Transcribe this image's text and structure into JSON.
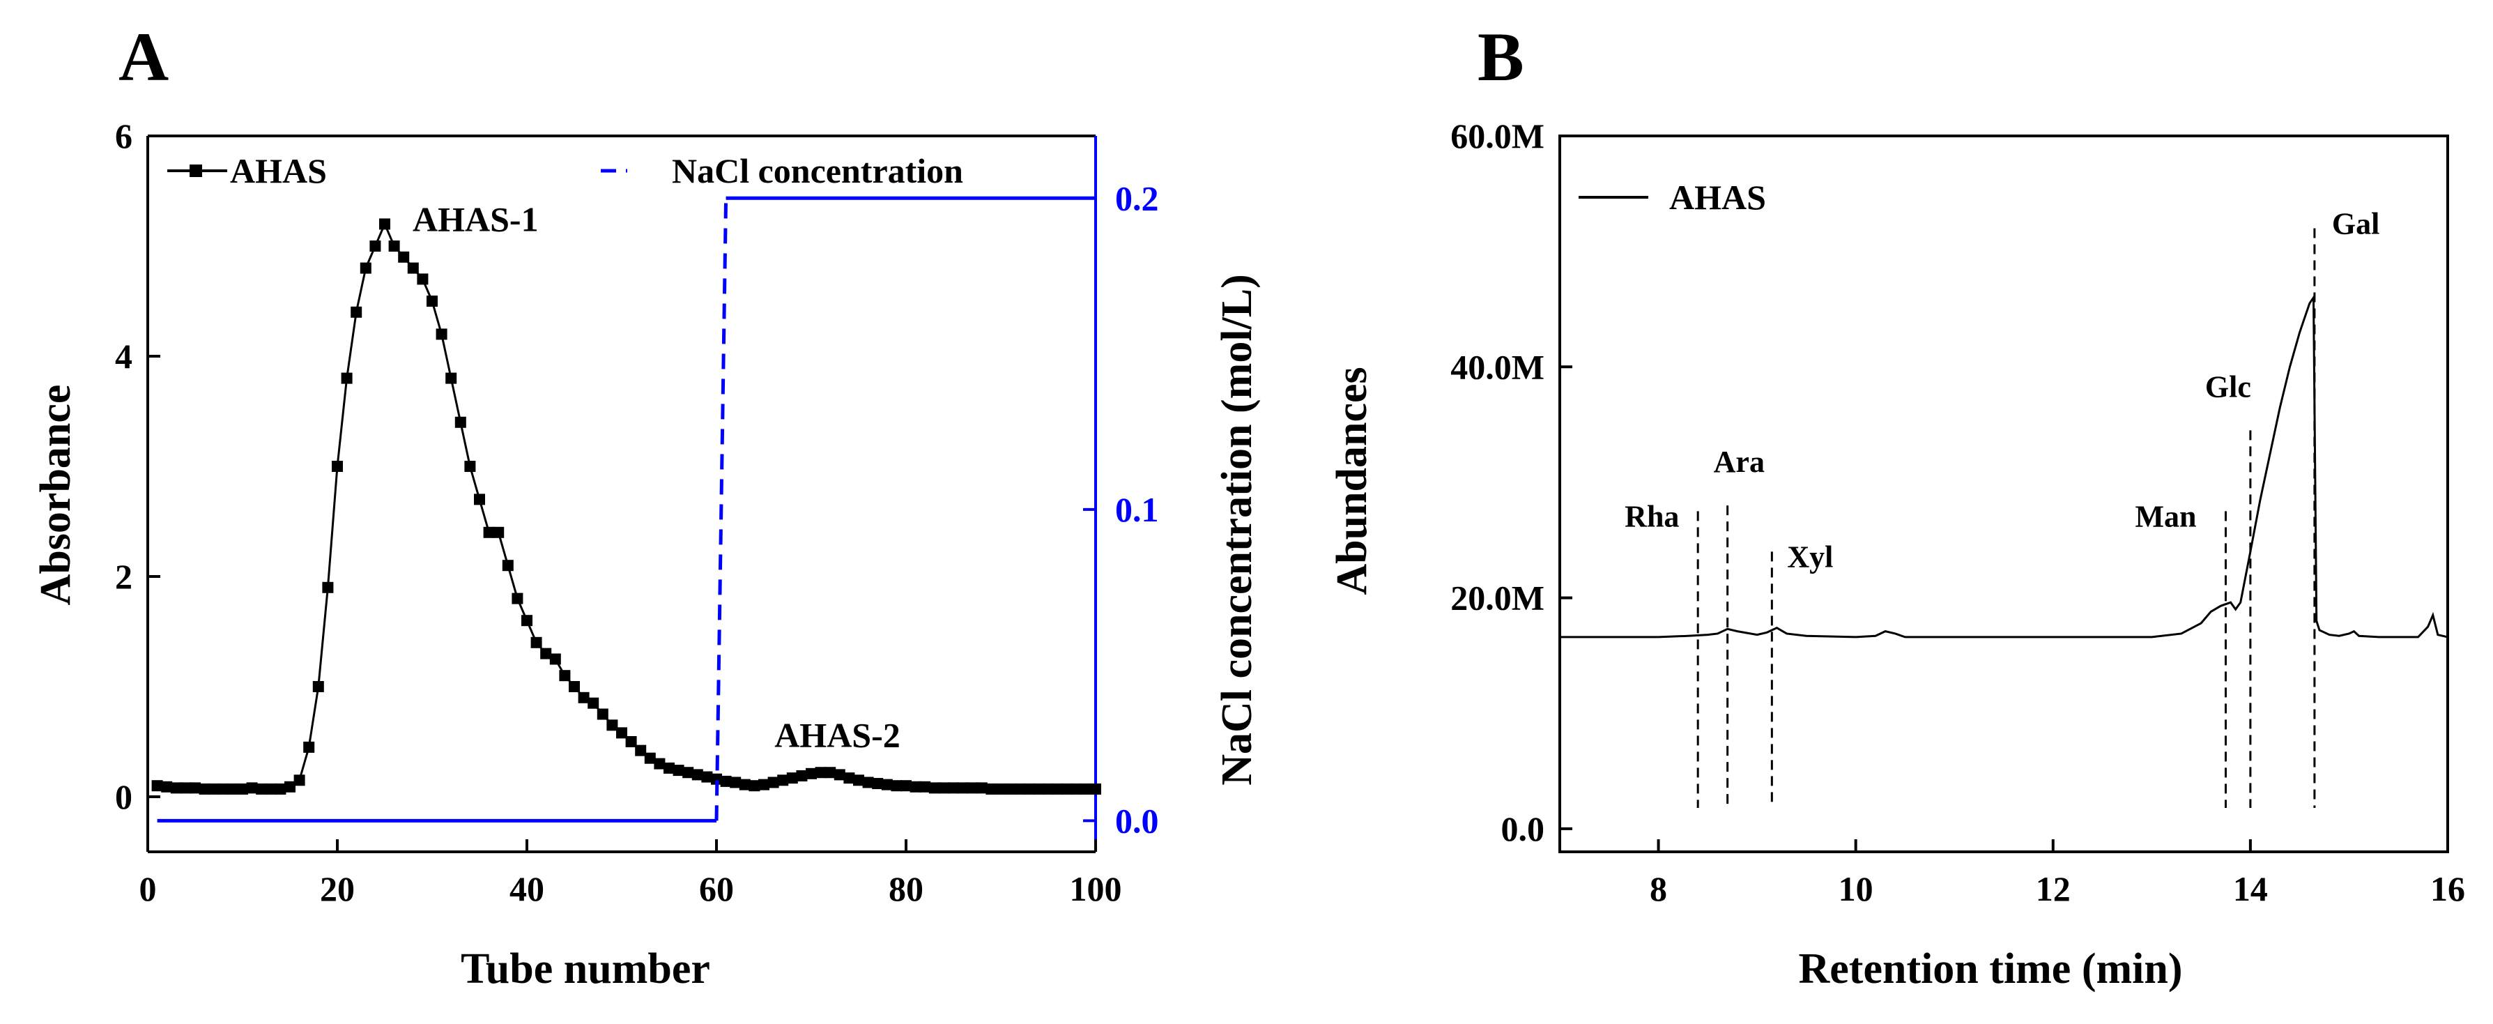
{
  "chart_data": [
    {
      "panel_label": "A",
      "type": "line",
      "xlabel": "Tube number",
      "ylabel": "Absorbance",
      "y2label": "NaCl concentration (mol/L)",
      "xlim": [
        0,
        100
      ],
      "ylim": [
        -0.5,
        6
      ],
      "y2lim": [
        -0.01,
        0.22
      ],
      "xticks": [
        0,
        20,
        40,
        60,
        80,
        100
      ],
      "yticks": [
        0,
        2,
        4,
        6
      ],
      "y2ticks": [
        "0.0",
        "0.1",
        "0.2"
      ],
      "y2tick_values": [
        0.0,
        0.1,
        0.2
      ],
      "legend": [
        "AHAS",
        "NaCl concentration"
      ],
      "annotations": [
        {
          "text": "AHAS-1",
          "x": 25,
          "y": 5.2
        },
        {
          "text": "AHAS-2",
          "x": 72,
          "y": 0.2
        }
      ],
      "series": [
        {
          "name": "AHAS",
          "axis": "left",
          "color": "#000000",
          "x": [
            1,
            2,
            3,
            4,
            5,
            6,
            7,
            8,
            9,
            10,
            11,
            12,
            13,
            14,
            15,
            16,
            17,
            18,
            19,
            20,
            21,
            22,
            23,
            24,
            25,
            26,
            27,
            28,
            29,
            30,
            31,
            32,
            33,
            34,
            35,
            36,
            37,
            38,
            39,
            40,
            41,
            42,
            43,
            44,
            45,
            46,
            47,
            48,
            49,
            50,
            51,
            52,
            53,
            54,
            55,
            56,
            57,
            58,
            59,
            60,
            61,
            62,
            63,
            64,
            65,
            66,
            67,
            68,
            69,
            70,
            71,
            72,
            73,
            74,
            75,
            76,
            77,
            78,
            79,
            80,
            81,
            82,
            83,
            84,
            85,
            86,
            87,
            88,
            89,
            90,
            91,
            92,
            93,
            94,
            95,
            96,
            97,
            98,
            99,
            100
          ],
          "values": [
            0.1,
            0.09,
            0.08,
            0.08,
            0.08,
            0.07,
            0.07,
            0.07,
            0.07,
            0.07,
            0.08,
            0.07,
            0.07,
            0.07,
            0.09,
            0.15,
            0.45,
            1.0,
            1.9,
            3.0,
            3.8,
            4.4,
            4.8,
            5.0,
            5.2,
            5.0,
            4.9,
            4.8,
            4.7,
            4.5,
            4.2,
            3.8,
            3.4,
            3.0,
            2.7,
            2.4,
            2.4,
            2.1,
            1.8,
            1.6,
            1.4,
            1.3,
            1.25,
            1.1,
            1.0,
            0.9,
            0.85,
            0.75,
            0.65,
            0.58,
            0.5,
            0.42,
            0.35,
            0.3,
            0.26,
            0.24,
            0.22,
            0.2,
            0.18,
            0.16,
            0.14,
            0.13,
            0.11,
            0.1,
            0.11,
            0.13,
            0.15,
            0.17,
            0.19,
            0.21,
            0.22,
            0.22,
            0.2,
            0.17,
            0.15,
            0.13,
            0.12,
            0.11,
            0.1,
            0.1,
            0.09,
            0.09,
            0.08,
            0.08,
            0.08,
            0.08,
            0.08,
            0.08,
            0.07,
            0.07,
            0.07,
            0.07,
            0.07,
            0.07,
            0.07,
            0.07,
            0.07,
            0.07,
            0.07,
            0.07
          ]
        },
        {
          "name": "NaCl concentration",
          "axis": "right",
          "color": "#0000ff",
          "x": [
            1,
            60,
            61,
            100
          ],
          "values": [
            0.0,
            0.0,
            0.2,
            0.2
          ]
        }
      ]
    },
    {
      "panel_label": "B",
      "type": "line",
      "xlabel": "Retention time (min)",
      "ylabel": "Abundances",
      "xlim": [
        7,
        16
      ],
      "ylim": [
        -2,
        60
      ],
      "xticks": [
        8,
        10,
        12,
        14,
        16
      ],
      "yticks": [
        0,
        20,
        40,
        60
      ],
      "ytick_labels": [
        "0.0",
        "20.0M",
        "40.0M",
        "60.0M"
      ],
      "legend": [
        "AHAS"
      ],
      "series": [
        {
          "name": "AHAS",
          "color": "#000000",
          "x": [
            7.0,
            7.5,
            8.0,
            8.3,
            8.5,
            8.6,
            8.7,
            8.8,
            9.0,
            9.1,
            9.2,
            9.3,
            9.5,
            10.0,
            10.2,
            10.3,
            10.4,
            10.5,
            11.0,
            11.5,
            12.0,
            12.5,
            13.0,
            13.3,
            13.5,
            13.6,
            13.7,
            13.8,
            13.85,
            13.9,
            14.0,
            14.1,
            14.2,
            14.3,
            14.4,
            14.5,
            14.6,
            14.64,
            14.67,
            14.7,
            14.8,
            14.9,
            15.0,
            15.05,
            15.1,
            15.3,
            15.5,
            15.7,
            15.8,
            15.85,
            15.9,
            16.0
          ],
          "values": [
            16.6,
            16.6,
            16.6,
            16.7,
            16.8,
            16.9,
            17.3,
            17.1,
            16.8,
            17.0,
            17.4,
            16.9,
            16.7,
            16.6,
            16.7,
            17.1,
            16.9,
            16.6,
            16.6,
            16.6,
            16.6,
            16.6,
            16.6,
            16.9,
            17.8,
            18.8,
            19.3,
            19.6,
            19.0,
            19.6,
            24.0,
            28.5,
            32.5,
            36.5,
            40.0,
            43.0,
            45.5,
            46.0,
            18.0,
            17.2,
            16.8,
            16.7,
            16.9,
            17.1,
            16.7,
            16.6,
            16.6,
            16.6,
            17.5,
            18.5,
            16.8,
            16.6
          ]
        }
      ],
      "markers": [
        {
          "label": "Rha",
          "x": 8.4,
          "top": 27.5
        },
        {
          "label": "Ara",
          "x": 8.7,
          "top": 28.0
        },
        {
          "label": "Xyl",
          "x": 9.15,
          "top": 24.0
        },
        {
          "label": "Man",
          "x": 13.75,
          "top": 27.5
        },
        {
          "label": "Glc",
          "x": 14.0,
          "top": 34.5
        },
        {
          "label": "Gal",
          "x": 14.65,
          "top": 52.0
        }
      ]
    }
  ]
}
